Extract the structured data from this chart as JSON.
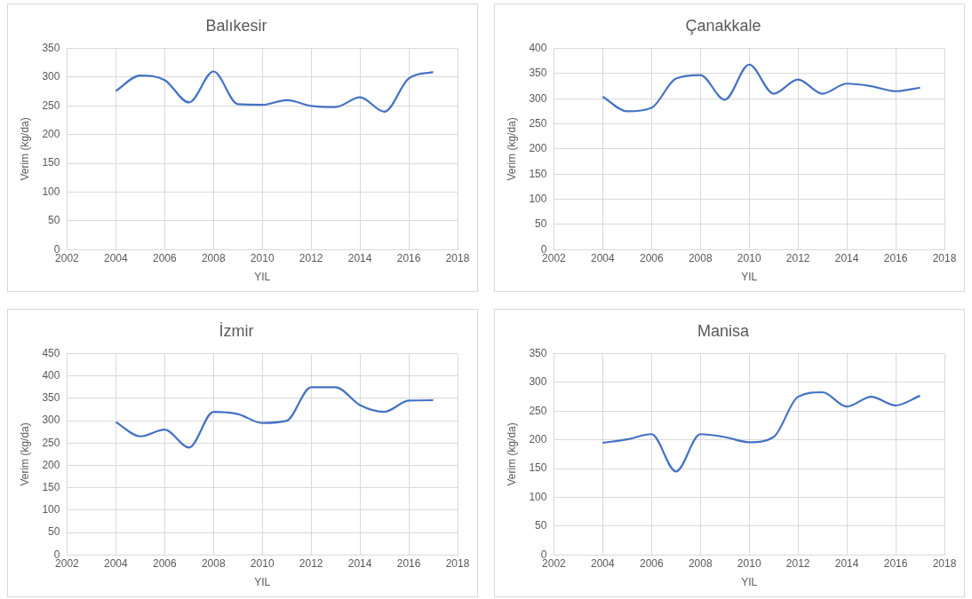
{
  "chart_data": [
    {
      "type": "line",
      "title": "Balıkesir",
      "xlabel": "YIL",
      "ylabel": "Verim (kg/da)",
      "x": [
        2004,
        2005,
        2006,
        2007,
        2008,
        2009,
        2010,
        2011,
        2012,
        2013,
        2014,
        2015,
        2016,
        2017
      ],
      "series": [
        {
          "color": "#4472c4",
          "values": [
            276,
            303,
            295,
            256,
            310,
            253,
            252,
            260,
            250,
            248,
            265,
            240,
            298,
            309
          ]
        }
      ],
      "xlim": [
        2002,
        2018
      ],
      "xticks": [
        2002,
        2004,
        2006,
        2008,
        2010,
        2012,
        2014,
        2016,
        2018
      ],
      "ylim": [
        0,
        350
      ],
      "yticks": [
        0,
        50,
        100,
        150,
        200,
        250,
        300,
        350
      ],
      "grid": true,
      "legend": false,
      "marker": "none",
      "line_style": "solid"
    },
    {
      "type": "line",
      "title": "Çanakkale",
      "xlabel": "YIL",
      "ylabel": "Verim (kg/da)",
      "x": [
        2004,
        2005,
        2006,
        2007,
        2008,
        2009,
        2010,
        2011,
        2012,
        2013,
        2014,
        2015,
        2016,
        2017
      ],
      "series": [
        {
          "color": "#4472c4",
          "values": [
            304,
            275,
            282,
            340,
            347,
            298,
            368,
            310,
            338,
            310,
            330,
            325,
            315,
            322
          ]
        }
      ],
      "xlim": [
        2002,
        2018
      ],
      "xticks": [
        2002,
        2004,
        2006,
        2008,
        2010,
        2012,
        2014,
        2016,
        2018
      ],
      "ylim": [
        0,
        400
      ],
      "yticks": [
        0,
        50,
        100,
        150,
        200,
        250,
        300,
        350,
        400
      ],
      "grid": true,
      "legend": false,
      "marker": "none",
      "line_style": "solid"
    },
    {
      "type": "line",
      "title": "İzmir",
      "xlabel": "YIL",
      "ylabel": "Verim (kg/da)",
      "x": [
        2004,
        2005,
        2006,
        2007,
        2008,
        2009,
        2010,
        2011,
        2012,
        2013,
        2014,
        2015,
        2016,
        2017
      ],
      "series": [
        {
          "color": "#4472c4",
          "values": [
            297,
            265,
            280,
            240,
            320,
            315,
            295,
            300,
            375,
            375,
            335,
            320,
            345,
            346
          ]
        }
      ],
      "xlim": [
        2002,
        2018
      ],
      "xticks": [
        2002,
        2004,
        2006,
        2008,
        2010,
        2012,
        2014,
        2016,
        2018
      ],
      "ylim": [
        0,
        450
      ],
      "yticks": [
        0,
        50,
        100,
        150,
        200,
        250,
        300,
        350,
        400,
        450
      ],
      "grid": true,
      "legend": false,
      "marker": "none",
      "line_style": "solid"
    },
    {
      "type": "line",
      "title": "Manisa",
      "xlabel": "YIL",
      "ylabel": "Verim (kg/da)",
      "x": [
        2004,
        2005,
        2006,
        2007,
        2008,
        2009,
        2010,
        2011,
        2012,
        2013,
        2014,
        2015,
        2016,
        2017
      ],
      "series": [
        {
          "color": "#4472c4",
          "values": [
            195,
            201,
            210,
            145,
            210,
            205,
            196,
            205,
            275,
            283,
            258,
            275,
            260,
            277
          ]
        }
      ],
      "xlim": [
        2002,
        2018
      ],
      "xticks": [
        2002,
        2004,
        2006,
        2008,
        2010,
        2012,
        2014,
        2016,
        2018
      ],
      "ylim": [
        0,
        350
      ],
      "yticks": [
        0,
        50,
        100,
        150,
        200,
        250,
        300,
        350
      ],
      "grid": true,
      "legend": false,
      "marker": "none",
      "line_style": "solid"
    }
  ]
}
